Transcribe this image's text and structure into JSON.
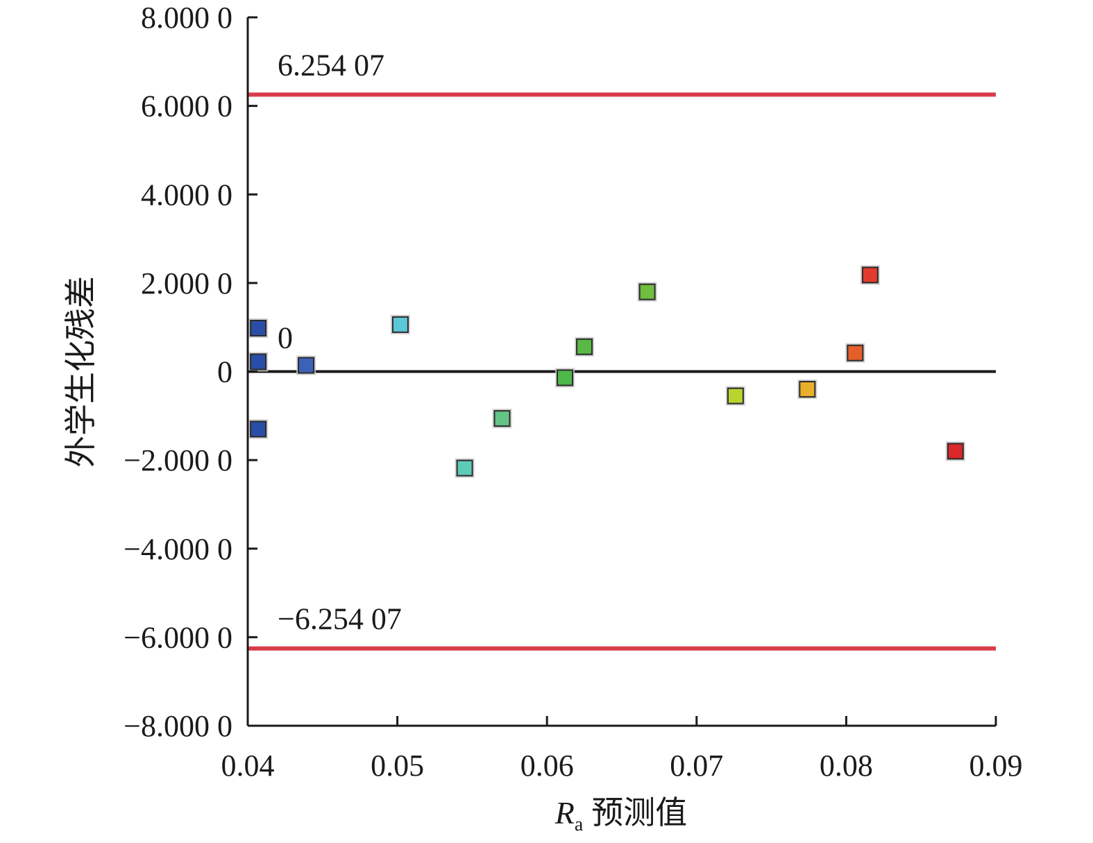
{
  "chart_data": {
    "type": "scatter",
    "xlabel_var": "R",
    "xlabel_sub": "a",
    "xlabel_rest": "预测值",
    "ylabel": "外学生化残差",
    "xlim": [
      0.04,
      0.09
    ],
    "ylim": [
      -8,
      8
    ],
    "x_ticks": [
      0.04,
      0.05,
      0.06,
      0.07,
      0.08,
      0.09
    ],
    "x_tick_labels": [
      "0.04",
      "0.05",
      "0.06",
      "0.07",
      "0.08",
      "0.09"
    ],
    "y_ticks": [
      8,
      6,
      4,
      2,
      0,
      -2,
      -4,
      -6,
      -8
    ],
    "y_tick_labels": [
      "8.000 0",
      "6.000 0",
      "4.000 0",
      "2.000 0",
      "0",
      "−2.000 0",
      "−4.000 0",
      "−6.000 0",
      "−8.000 0"
    ],
    "reference_lines": [
      {
        "y": 6.25407,
        "label": "6.254 07",
        "color": "#d6313f"
      },
      {
        "y": 0,
        "label": "0",
        "color": "#1a1a1a"
      },
      {
        "y": -6.25407,
        "label": "−6.254 07",
        "color": "#d6313f"
      }
    ],
    "points": [
      {
        "x": 0.0407,
        "y": 0.98,
        "color": "#2a4ea8"
      },
      {
        "x": 0.0407,
        "y": 0.22,
        "color": "#2a4ea8"
      },
      {
        "x": 0.0407,
        "y": -1.3,
        "color": "#2a4ea8"
      },
      {
        "x": 0.0439,
        "y": 0.14,
        "color": "#3b62b8"
      },
      {
        "x": 0.0502,
        "y": 1.06,
        "color": "#5cc7d6"
      },
      {
        "x": 0.0545,
        "y": -2.18,
        "color": "#5ecbb6"
      },
      {
        "x": 0.057,
        "y": -1.06,
        "color": "#63c486"
      },
      {
        "x": 0.0612,
        "y": -0.14,
        "color": "#4fb84a"
      },
      {
        "x": 0.0625,
        "y": 0.56,
        "color": "#5ab944"
      },
      {
        "x": 0.0667,
        "y": 1.8,
        "color": "#6fbe3e"
      },
      {
        "x": 0.0726,
        "y": -0.55,
        "color": "#b8d42e"
      },
      {
        "x": 0.0774,
        "y": -0.4,
        "color": "#e9ae2a"
      },
      {
        "x": 0.0806,
        "y": 0.42,
        "color": "#e45f2a"
      },
      {
        "x": 0.0816,
        "y": 2.18,
        "color": "#e23b2d"
      },
      {
        "x": 0.0873,
        "y": -1.8,
        "color": "#d9272a"
      }
    ]
  }
}
